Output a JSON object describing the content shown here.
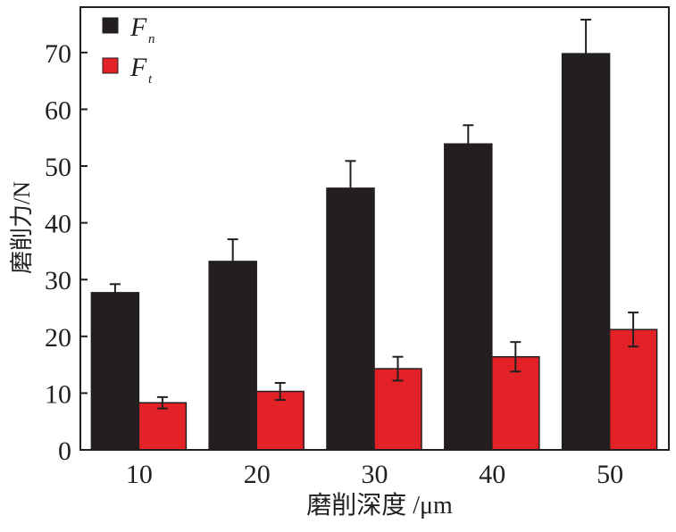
{
  "chart_data": {
    "type": "bar",
    "xlabel": "磨削深度 /μm",
    "ylabel": "磨削力/N",
    "categories": [
      "10",
      "20",
      "30",
      "40",
      "50"
    ],
    "ylim": [
      0,
      78
    ],
    "yticks": [
      0,
      10,
      20,
      30,
      40,
      50,
      60,
      70
    ],
    "grid": false,
    "legend_position": "top-left",
    "series": [
      {
        "name": "F_n",
        "symbol": "F",
        "subscript": "n",
        "color": "#231f20",
        "values": [
          27.7,
          33.2,
          46.1,
          53.9,
          69.8
        ],
        "error": [
          1.5,
          3.9,
          4.8,
          3.3,
          6.0
        ]
      },
      {
        "name": "F_t",
        "symbol": "F",
        "subscript": "t",
        "color": "#e32228",
        "values": [
          8.3,
          10.3,
          14.3,
          16.4,
          21.2
        ],
        "error": [
          1.0,
          1.5,
          2.1,
          2.6,
          3.0
        ]
      }
    ]
  }
}
